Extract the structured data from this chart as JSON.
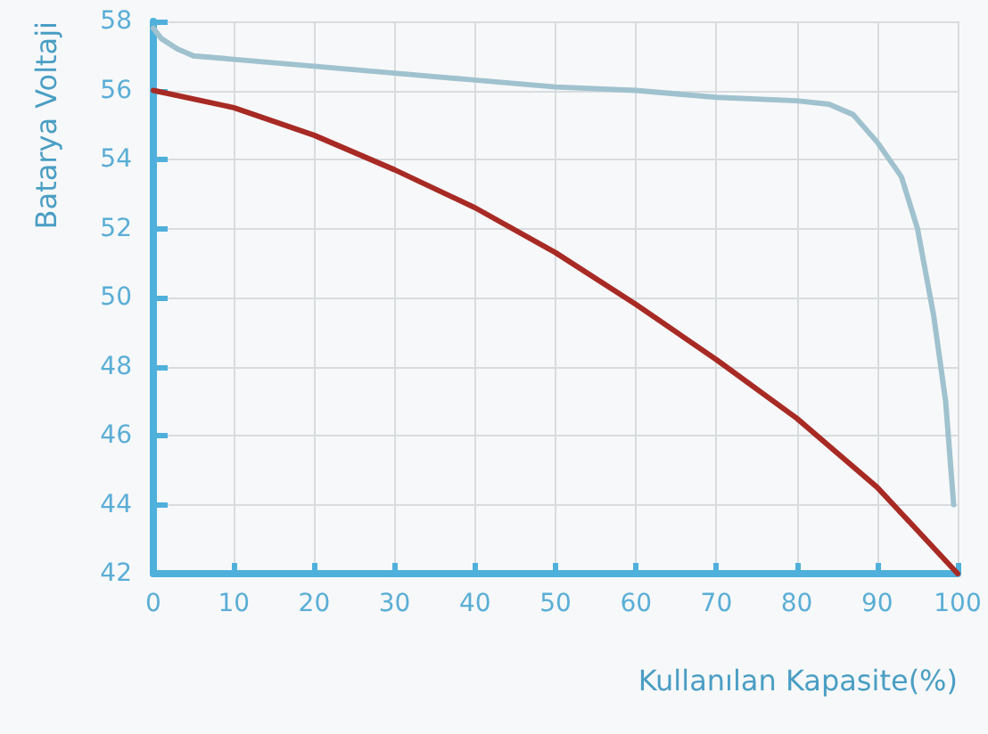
{
  "chart_data": {
    "type": "line",
    "xlabel": "Kullanılan Kapasite(%)",
    "ylabel": "Batarya Voltaji",
    "xlim": [
      0,
      100
    ],
    "xticks": [
      0,
      10,
      20,
      30,
      40,
      50,
      60,
      70,
      80,
      90,
      100
    ],
    "ylim": [
      42,
      58
    ],
    "yticks": [
      42,
      44,
      46,
      48,
      50,
      52,
      54,
      56,
      58
    ],
    "grid": true,
    "marker": "none",
    "line_style": "solid",
    "series": [
      {
        "color": "#a0c2cf",
        "x": [
          0,
          1,
          3,
          5,
          10,
          20,
          30,
          40,
          50,
          60,
          70,
          80,
          84,
          87,
          90,
          93,
          95,
          97,
          98.5,
          99.5
        ],
        "values": [
          57.8,
          57.5,
          57.2,
          57.0,
          56.9,
          56.7,
          56.5,
          56.3,
          56.1,
          56.0,
          55.8,
          55.7,
          55.6,
          55.3,
          54.5,
          53.5,
          52,
          49.5,
          47,
          44
        ]
      },
      {
        "color": "#a82a24",
        "x": [
          0,
          10,
          20,
          30,
          40,
          50,
          60,
          70,
          80,
          90,
          100
        ],
        "values": [
          56,
          55.5,
          54.7,
          53.7,
          52.6,
          51.3,
          49.8,
          48.2,
          46.5,
          44.5,
          42
        ]
      }
    ]
  }
}
